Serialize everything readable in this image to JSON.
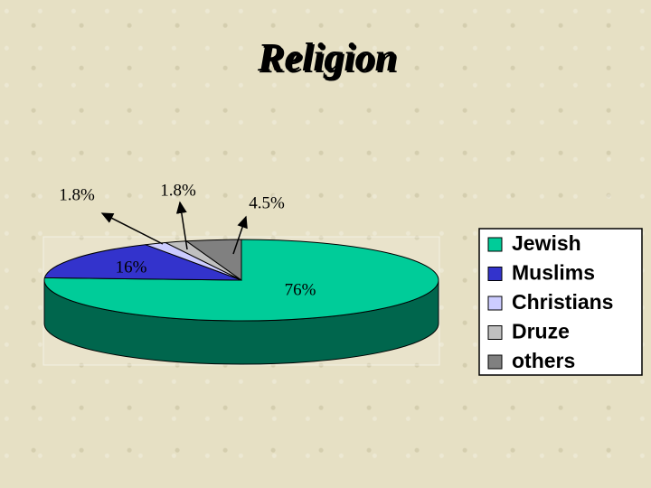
{
  "chart_data": {
    "type": "pie3d",
    "title": "Religion",
    "categories": [
      "Jewish",
      "Muslims",
      "Christians",
      "Druze",
      "others"
    ],
    "series": [
      {
        "name": "Religion",
        "values": [
          76,
          16,
          1.8,
          1.8,
          4.5
        ],
        "value_labels": [
          "76%",
          "16%",
          "1.8%",
          "1.8%",
          "4.5%"
        ],
        "colors": [
          "#00cc99",
          "#3333cc",
          "#ccccff",
          "#c0c0c0",
          "#808080"
        ]
      }
    ],
    "legend": "right"
  }
}
